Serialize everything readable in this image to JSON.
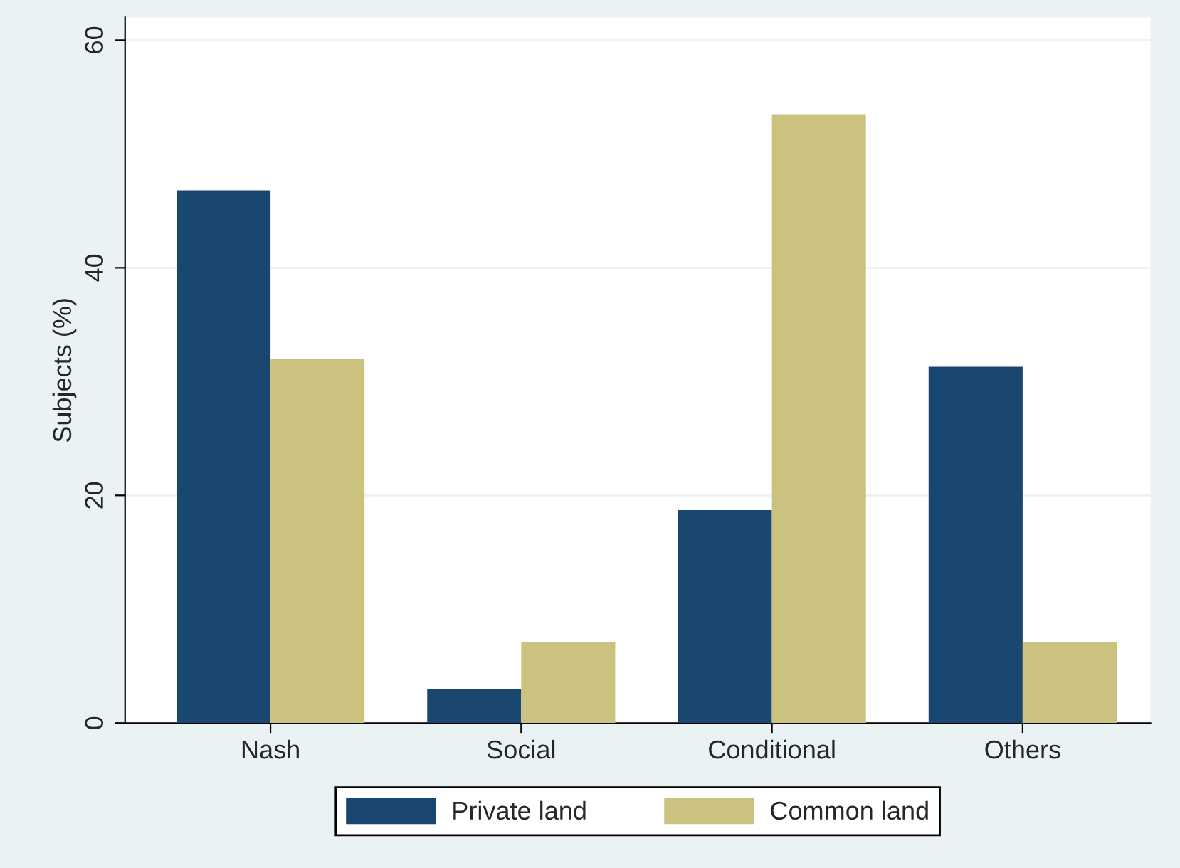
{
  "chart_data": {
    "type": "bar",
    "ylabel": "Subjects (%)",
    "categories": [
      "Nash",
      "Social",
      "Conditional",
      "Others"
    ],
    "series": [
      {
        "name": "Private land",
        "color": "#1a476f",
        "values": [
          46.8,
          3.0,
          18.7,
          31.3
        ]
      },
      {
        "name": "Common land",
        "color": "#cac27e",
        "values": [
          32.0,
          7.1,
          53.5,
          7.1
        ]
      }
    ],
    "ylim": [
      0,
      62
    ],
    "yticks": [
      0,
      20,
      40,
      60
    ],
    "grid": "y",
    "legend": "bottom"
  }
}
